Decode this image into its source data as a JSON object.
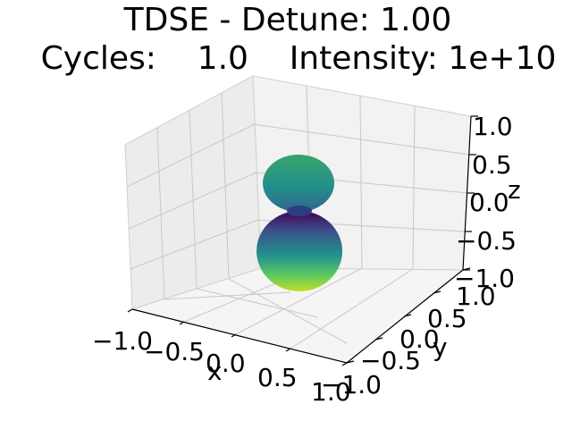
{
  "chart_data": {
    "type": "surface3d",
    "title_line1": "TDSE - Detune: 1.00",
    "title_line2": "Cycles:    1.0    Intensity: 1e+10",
    "xlabel": "x",
    "ylabel": "y",
    "zlabel": "z",
    "xlim": [
      -1.0,
      1.0
    ],
    "ylim": [
      -1.0,
      1.0
    ],
    "zlim": [
      -1.0,
      1.0
    ],
    "x_ticks": [
      "−1.0",
      "−0.5",
      "0.0",
      "0.5",
      "1.0"
    ],
    "y_ticks": [
      "−1.0",
      "−0.5",
      "0.0",
      "0.5",
      "1.0"
    ],
    "z_ticks": [
      "−1.0",
      "−0.5",
      "0.0",
      "0.5",
      "1.0"
    ],
    "grid": true,
    "colormap": "viridis",
    "surface": {
      "shape": "two-lobed radial surface along z",
      "upper_lobe_extent_z": [
        0.05,
        0.55
      ],
      "lower_lobe_extent_z": [
        -0.85,
        0.05
      ],
      "colors": [
        "#440154",
        "#3b528b",
        "#21918c",
        "#5ec962",
        "#fde725"
      ]
    }
  }
}
